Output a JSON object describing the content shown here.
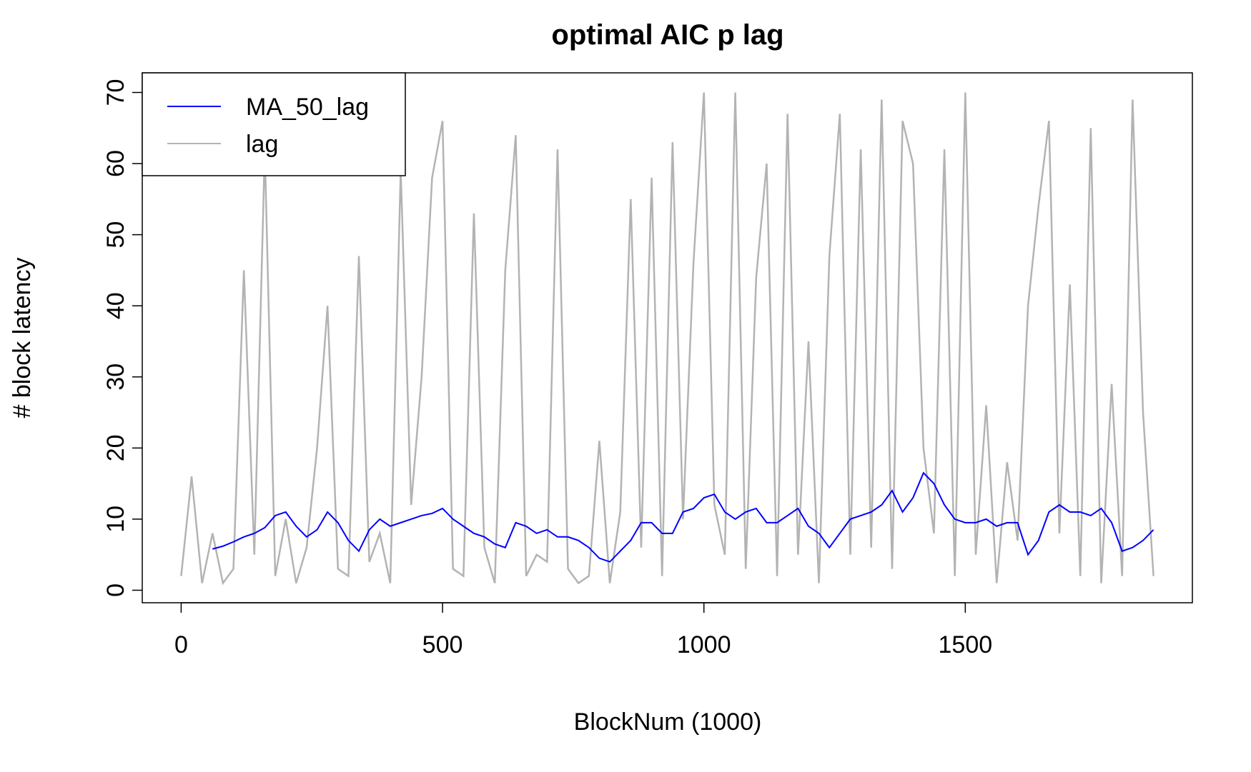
{
  "chart_data": {
    "type": "line",
    "title": "optimal AIC p lag",
    "x_label": "BlockNum (1000)",
    "y_label": "# block latency",
    "x": [
      0,
      20,
      40,
      60,
      80,
      100,
      120,
      140,
      160,
      180,
      200,
      220,
      240,
      260,
      280,
      300,
      320,
      340,
      360,
      380,
      400,
      420,
      440,
      460,
      480,
      500,
      520,
      540,
      560,
      580,
      600,
      620,
      640,
      660,
      680,
      700,
      720,
      740,
      760,
      780,
      800,
      820,
      840,
      860,
      880,
      900,
      920,
      940,
      960,
      980,
      1000,
      1020,
      1040,
      1060,
      1080,
      1100,
      1120,
      1140,
      1160,
      1180,
      1200,
      1220,
      1240,
      1260,
      1280,
      1300,
      1320,
      1340,
      1360,
      1380,
      1400,
      1420,
      1440,
      1460,
      1480,
      1500,
      1520,
      1540,
      1560,
      1580,
      1600,
      1620,
      1640,
      1660,
      1680,
      1700,
      1720,
      1740,
      1760,
      1780,
      1800,
      1820,
      1840,
      1860
    ],
    "series": [
      {
        "name": "lag",
        "color": "#b3b3b3",
        "values": [
          2,
          16,
          1,
          8,
          1,
          3,
          45,
          5,
          62,
          2,
          10,
          1,
          6,
          20,
          40,
          3,
          2,
          47,
          4,
          8,
          1,
          59,
          12,
          30,
          58,
          66,
          3,
          2,
          53,
          6,
          1,
          45,
          64,
          2,
          5,
          4,
          62,
          3,
          1,
          2,
          21,
          1,
          11,
          55,
          6,
          58,
          2,
          63,
          10,
          46,
          70,
          12,
          5,
          70,
          3,
          44,
          60,
          2,
          67,
          5,
          35,
          1,
          47,
          67,
          5,
          62,
          6,
          69,
          3,
          66,
          60,
          20,
          8,
          62,
          2,
          70,
          5,
          26,
          1,
          18,
          7,
          40,
          54,
          66,
          8,
          43,
          2,
          65,
          1,
          29,
          2,
          69,
          25,
          2
        ]
      },
      {
        "name": "MA_50_lag",
        "color": "#0000ff",
        "values": [
          null,
          null,
          null,
          5.8,
          6.2,
          6.8,
          7.5,
          8.0,
          8.8,
          10.5,
          11,
          9,
          7.5,
          8.5,
          11,
          9.5,
          7,
          5.5,
          8.5,
          10,
          9,
          9.5,
          10,
          10.5,
          10.8,
          11.5,
          10,
          9,
          8,
          7.5,
          6.5,
          6,
          9.5,
          9,
          8,
          8.5,
          7.5,
          7.5,
          7,
          6,
          4.5,
          4,
          5.5,
          7,
          9.5,
          9.5,
          8,
          8,
          11,
          11.5,
          13,
          13.5,
          11,
          10,
          11,
          11.5,
          9.5,
          9.5,
          10.5,
          11.5,
          9,
          8,
          6,
          8,
          10,
          10.5,
          11,
          12,
          14,
          11,
          13,
          16.5,
          15,
          12,
          10,
          9.5,
          9.5,
          10,
          9,
          9.5,
          9.5,
          5,
          7,
          11,
          12,
          11,
          11,
          10.5,
          11.5,
          9.5,
          5.5,
          6,
          7,
          8.5
        ]
      }
    ],
    "legend_order": [
      1,
      0
    ],
    "legend_position": "topleft",
    "xlim": [
      -74.4,
      1934.4
    ],
    "xticks": [
      0,
      500,
      1000,
      1500
    ],
    "ylim": [
      -1.76,
      72.76
    ],
    "yticks": [
      0,
      10,
      20,
      30,
      40,
      50,
      60,
      70
    ]
  }
}
